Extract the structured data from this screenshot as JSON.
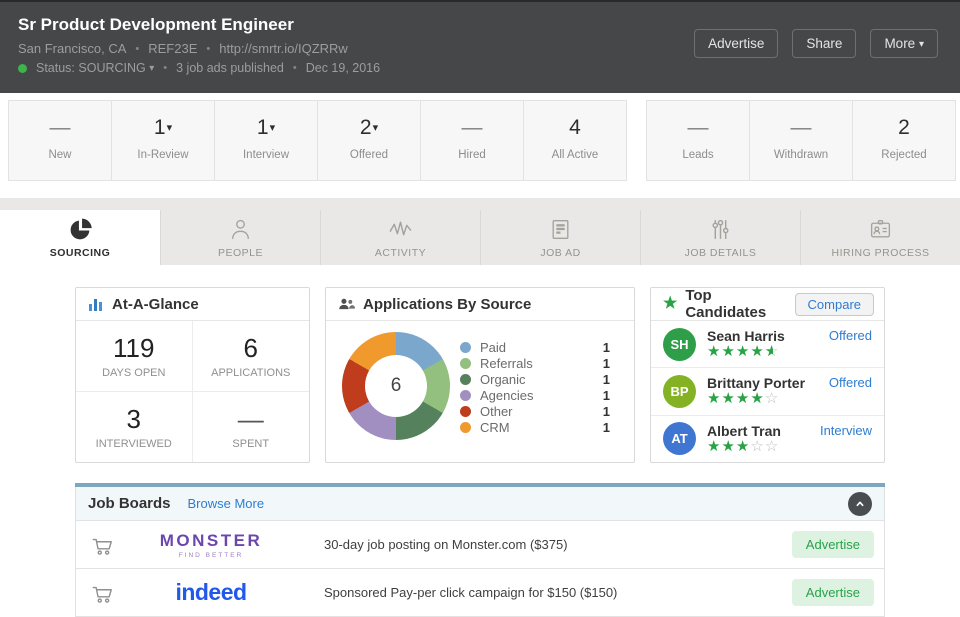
{
  "header": {
    "title": "Sr Product Development Engineer",
    "location": "San Francisco, CA",
    "ref_code": "REF23E",
    "url": "http://smrtr.io/IQZRRw",
    "status_label": "Status: SOURCING",
    "job_ads_published": "3 job ads published",
    "date": "Dec 19, 2016",
    "buttons": {
      "advertise": "Advertise",
      "share": "Share",
      "more": "More"
    }
  },
  "pipeline": {
    "groups": [
      {
        "items": [
          {
            "value": "—",
            "label": "New"
          },
          {
            "value": "1",
            "label": "In-Review"
          },
          {
            "value": "1",
            "label": "Interview"
          },
          {
            "value": "2",
            "label": "Offered"
          },
          {
            "value": "—",
            "label": "Hired"
          },
          {
            "value": "4",
            "label": "All Active"
          }
        ]
      },
      {
        "items": [
          {
            "value": "—",
            "label": "Leads"
          },
          {
            "value": "—",
            "label": "Withdrawn"
          },
          {
            "value": "2",
            "label": "Rejected"
          }
        ]
      }
    ]
  },
  "tabs": [
    {
      "label": "SOURCING",
      "icon": "pie-chart-icon",
      "active": true
    },
    {
      "label": "PEOPLE",
      "icon": "person-icon",
      "active": false
    },
    {
      "label": "ACTIVITY",
      "icon": "activity-wave-icon",
      "active": false
    },
    {
      "label": "JOB AD",
      "icon": "document-icon",
      "active": false
    },
    {
      "label": "JOB DETAILS",
      "icon": "sliders-icon",
      "active": false
    },
    {
      "label": "HIRING PROCESS",
      "icon": "id-badge-icon",
      "active": false
    }
  ],
  "at_a_glance": {
    "title": "At-A-Glance",
    "metrics": [
      {
        "value": "119",
        "label": "DAYS OPEN"
      },
      {
        "value": "6",
        "label": "APPLICATIONS"
      },
      {
        "value": "3",
        "label": "INTERVIEWED"
      },
      {
        "value": "—",
        "label": "SPENT"
      }
    ]
  },
  "applications_by_source": {
    "title": "Applications By Source",
    "chart_data": {
      "type": "pie",
      "subtype": "donut",
      "labels": [
        "Paid",
        "Referrals",
        "Organic",
        "Agencies",
        "Other",
        "CRM"
      ],
      "values": [
        1,
        1,
        1,
        1,
        1,
        1
      ],
      "display_counts": [
        "1",
        "1",
        "1",
        "1",
        "1",
        "1"
      ],
      "colors": [
        "#7ba7cc",
        "#93c07e",
        "#55815c",
        "#a18fc2",
        "#bf3c1d",
        "#f0992d"
      ],
      "center_label": "6",
      "legend_position": "right"
    }
  },
  "top_candidates": {
    "title": "Top Candidates",
    "compare_label": "Compare",
    "candidates": [
      {
        "initials": "SH",
        "name": "Sean Harris",
        "rating": 4.5,
        "status": "Offered",
        "avatar_color": "#2f9e48"
      },
      {
        "initials": "BP",
        "name": "Brittany Porter",
        "rating": 4,
        "status": "Offered",
        "avatar_color": "#85b224"
      },
      {
        "initials": "AT",
        "name": "Albert Tran",
        "rating": 3,
        "status": "Interview",
        "avatar_color": "#3f76d2"
      }
    ],
    "star_color": "#27a345"
  },
  "job_boards": {
    "title": "Job Boards",
    "browse_more_label": "Browse More",
    "accent_color": "#7ea6bf",
    "rows": [
      {
        "logo": "MONSTER",
        "tagline": "FIND BETTER",
        "logo_color": "#6b46ad",
        "description": "30-day job posting on Monster.com ($375)",
        "action": "Advertise"
      },
      {
        "logo": "indeed",
        "tagline": "",
        "logo_color": "#2159e9",
        "description": "Sponsored Pay-per click campaign for $150 ($150)",
        "action": "Advertise"
      }
    ]
  }
}
